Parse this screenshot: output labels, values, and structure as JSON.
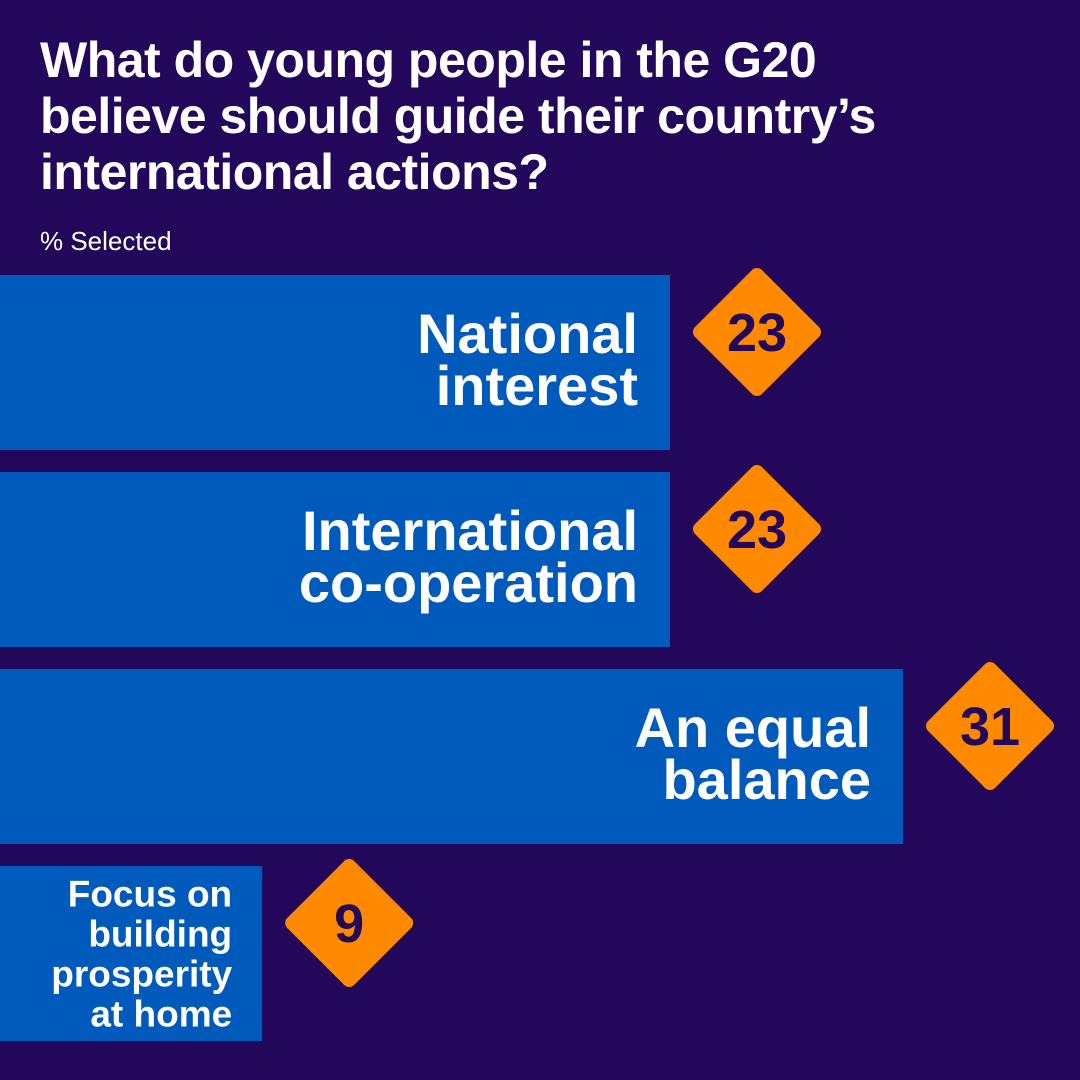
{
  "header": {
    "title_lines": [
      "What do young people in the G20",
      "believe should guide their country’s",
      "international actions?"
    ],
    "subtitle": "% Selected"
  },
  "colors": {
    "background": "#23075a",
    "bar": "#005abb",
    "badge": "#ff8a00",
    "badge_text": "#23075a",
    "label_text": "#ffffff"
  },
  "chart_data": {
    "type": "bar",
    "orientation": "horizontal",
    "title": "What do young people in the G20 believe should guide their country’s international actions?",
    "subtitle": "% Selected",
    "categories": [
      [
        "National",
        "interest"
      ],
      [
        "International",
        "co-operation"
      ],
      [
        "An equal",
        "balance"
      ],
      [
        "Focus on",
        "building",
        "prosperity",
        "at home"
      ]
    ],
    "values": [
      23,
      23,
      31,
      9
    ],
    "unit": "%",
    "xlim": [
      0,
      36
    ],
    "grid": false,
    "legend": "none"
  }
}
